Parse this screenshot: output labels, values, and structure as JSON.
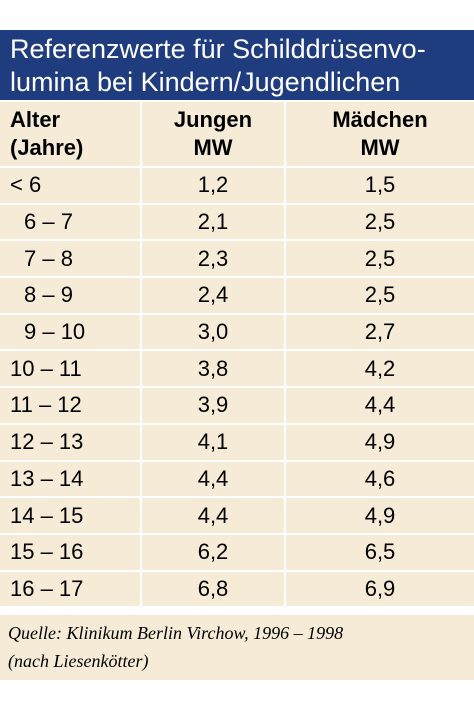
{
  "title": [
    "Referenzwerte für Schilddrüsenvo-",
    "lumina bei Kindern/Jugendlichen"
  ],
  "table": {
    "header": [
      [
        "Alter",
        "(Jahre)"
      ],
      [
        "Jungen",
        "MW"
      ],
      [
        "Mädchen",
        "MW"
      ]
    ],
    "rows": [
      [
        "< 6",
        "1,2",
        "1,5"
      ],
      [
        "6 – 7",
        "2,1",
        "2,5"
      ],
      [
        "7 – 8",
        "2,3",
        "2,5"
      ],
      [
        "8 – 9",
        "2,4",
        "2,5"
      ],
      [
        "9 – 10",
        "3,0",
        "2,7"
      ],
      [
        "10 – 11",
        "3,8",
        "4,2"
      ],
      [
        "11 – 12",
        "3,9",
        "4,4"
      ],
      [
        "12 – 13",
        "4,1",
        "4,9"
      ],
      [
        "13 – 14",
        "4,4",
        "4,6"
      ],
      [
        "14 – 15",
        "4,4",
        "4,9"
      ],
      [
        "15 – 16",
        "6,2",
        "6,5"
      ],
      [
        "16 – 17",
        "6,8",
        "6,9"
      ]
    ]
  },
  "source": [
    "Quelle: Klinikum Berlin Virchow, 1996 – 1998",
    "(nach Liesenkötter)"
  ]
}
